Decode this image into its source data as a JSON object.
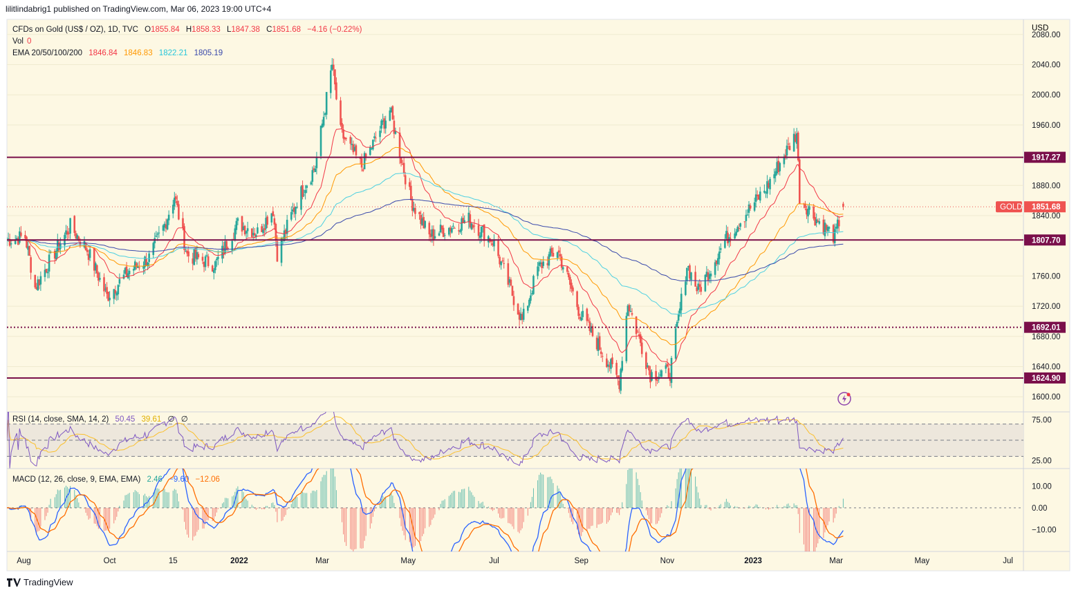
{
  "header": {
    "publisher": "lilitlindabrig1 published on TradingView.com, Mar 06, 2023 19:00 UTC+4"
  },
  "legend": {
    "symbol": "CFDs on Gold (US$ / OZ), 1D, TVC",
    "open_label": "O",
    "open": "1855.84",
    "high_label": "H",
    "high": "1858.33",
    "low_label": "L",
    "low": "1847.38",
    "close_label": "C",
    "close": "1851.68",
    "change": "−4.16 (−0.22%)",
    "vol_label": "Vol",
    "vol": "0",
    "ema_label": "EMA 20/50/100/200",
    "ema_values": [
      "1846.84",
      "1846.83",
      "1822.21",
      "1805.19"
    ],
    "rsi_label": "RSI (14, close, SMA, 14, 2)",
    "rsi_values": [
      "50.45",
      "39.61",
      "∅",
      "∅"
    ],
    "macd_label": "MACD (12, 26, close, 9, EMA, EMA)",
    "macd_values": [
      "2.46",
      "−9.60",
      "−12.06"
    ]
  },
  "colors": {
    "background": "#fdf8e3",
    "up": "#26a69a",
    "down": "#ef5350",
    "ema20": "#f23645",
    "ema50": "#ff9800",
    "ema100": "#4dd0e1",
    "ema200": "#3949ab",
    "level": "#7a0f4a",
    "rsi": "#7e57c2",
    "rsi_ma": "#fbc02d",
    "macd": "#2962ff",
    "signal": "#ff6d00"
  },
  "currency": "USD",
  "footer": {
    "brand": "TradingView"
  },
  "tool_icon": "lightning-icon",
  "chart_data": {
    "type": "candlestick",
    "symbol": "GOLD",
    "timeframe": "1D",
    "x_ticks": [
      "Aug",
      "Oct",
      "15",
      "2022",
      "Mar",
      "May",
      "Jul",
      "Sep",
      "Nov",
      "2023",
      "Mar",
      "May",
      "Jul"
    ],
    "y_ticks": [
      "2080.00",
      "2040.00",
      "2000.00",
      "1960.00",
      "1880.00",
      "1840.00",
      "1760.00",
      "1720.00",
      "1680.00",
      "1640.00",
      "1600.00"
    ],
    "ylim": [
      1580,
      2100
    ],
    "close_path": [
      [
        "2021-07-20",
        1808
      ],
      [
        "2021-08-02",
        1812
      ],
      [
        "2021-08-09",
        1745
      ],
      [
        "2021-08-20",
        1782
      ],
      [
        "2021-09-03",
        1826
      ],
      [
        "2021-09-15",
        1795
      ],
      [
        "2021-09-29",
        1733
      ],
      [
        "2021-10-15",
        1767
      ],
      [
        "2021-10-29",
        1784
      ],
      [
        "2021-11-09",
        1828
      ],
      [
        "2021-11-16",
        1866
      ],
      [
        "2021-11-25",
        1788
      ],
      [
        "2021-12-15",
        1775
      ],
      [
        "2021-12-31",
        1829
      ],
      [
        "2022-01-14",
        1818
      ],
      [
        "2022-01-25",
        1848
      ],
      [
        "2022-01-28",
        1790
      ],
      [
        "2022-02-11",
        1860
      ],
      [
        "2022-02-24",
        1905
      ],
      [
        "2022-03-08",
        2040
      ],
      [
        "2022-03-14",
        1950
      ],
      [
        "2022-03-29",
        1905
      ],
      [
        "2022-04-18",
        1980
      ],
      [
        "2022-05-03",
        1860
      ],
      [
        "2022-05-16",
        1813
      ],
      [
        "2022-06-13",
        1835
      ],
      [
        "2022-06-30",
        1807
      ],
      [
        "2022-07-21",
        1700
      ],
      [
        "2022-08-01",
        1770
      ],
      [
        "2022-08-15",
        1795
      ],
      [
        "2022-08-31",
        1711
      ],
      [
        "2022-09-28",
        1620
      ],
      [
        "2022-10-04",
        1725
      ],
      [
        "2022-10-20",
        1630
      ],
      [
        "2022-11-03",
        1632
      ],
      [
        "2022-11-15",
        1775
      ],
      [
        "2022-11-23",
        1740
      ],
      [
        "2022-12-13",
        1810
      ],
      [
        "2023-01-10",
        1876
      ],
      [
        "2023-01-26",
        1930
      ],
      [
        "2023-02-01",
        1950
      ],
      [
        "2023-02-03",
        1865
      ],
      [
        "2023-02-15",
        1835
      ],
      [
        "2023-02-28",
        1812
      ],
      [
        "2023-03-06",
        1851.68
      ]
    ],
    "horizontal_levels": [
      {
        "value": 1917.27,
        "label": "1917.27",
        "style": "solid"
      },
      {
        "value": 1807.7,
        "label": "1807.70",
        "style": "solid"
      },
      {
        "value": 1692.01,
        "label": "1692.01",
        "style": "dotted"
      },
      {
        "value": 1624.9,
        "label": "1624.90",
        "style": "solid"
      }
    ],
    "last_price": {
      "label": "GOLD",
      "value": "1851.68"
    },
    "indicators": {
      "ema_periods": [
        20,
        50,
        100,
        200
      ],
      "rsi": {
        "ticks": [
          "75.00",
          "25.00"
        ],
        "ylim": [
          15,
          85
        ],
        "band": [
          30,
          70
        ],
        "mid": 50
      },
      "macd": {
        "ticks": [
          "10.00",
          "0.00",
          "−10.00"
        ],
        "ylim": [
          -20,
          18
        ]
      }
    }
  }
}
